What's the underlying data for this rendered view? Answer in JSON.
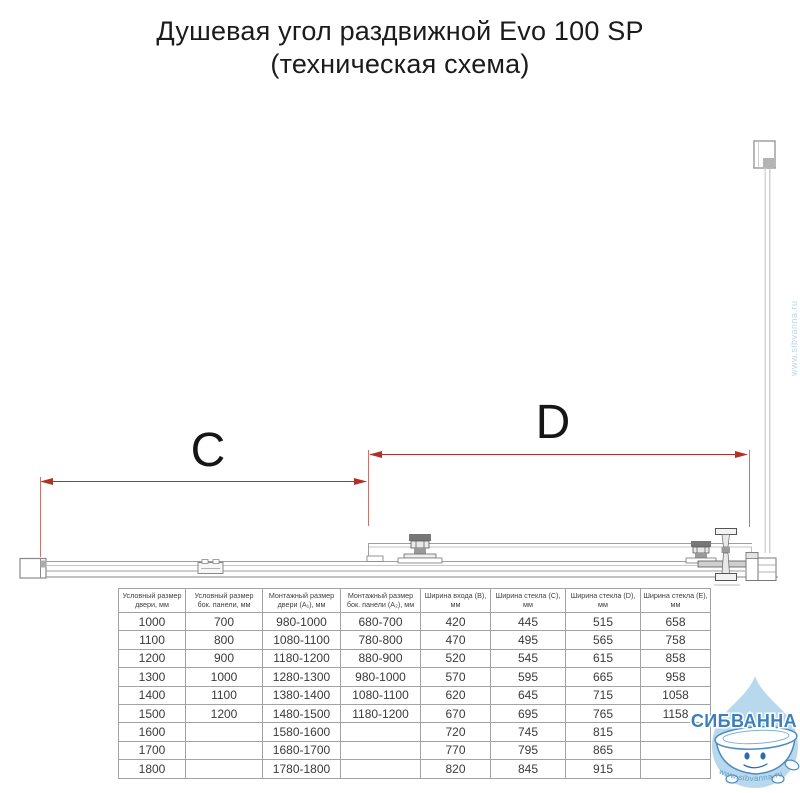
{
  "title": {
    "line1": "Душевая угол раздвижной Evo 100 SP",
    "line2": "(техническая схема)"
  },
  "diagram": {
    "dim_c_label": "C",
    "dim_d_label": "D",
    "dimension_color": "#b23127"
  },
  "table": {
    "headers": [
      "Условный размер двери, мм",
      "Условный размер бок. панели, мм",
      "Монтажный размер двери (A₁), мм",
      "Монтажный размер бок. панели (A₂), мм",
      "Ширина входа (B), мм",
      "Ширина стекла (C), мм",
      "Ширина стекла (D), мм",
      "Ширина стекла (E), мм"
    ],
    "rows": [
      [
        "1000",
        "700",
        "980-1000",
        "680-700",
        "420",
        "445",
        "515",
        "658"
      ],
      [
        "1100",
        "800",
        "1080-1100",
        "780-800",
        "470",
        "495",
        "565",
        "758"
      ],
      [
        "1200",
        "900",
        "1180-1200",
        "880-900",
        "520",
        "545",
        "615",
        "858"
      ],
      [
        "1300",
        "1000",
        "1280-1300",
        "980-1000",
        "570",
        "595",
        "665",
        "958"
      ],
      [
        "1400",
        "1100",
        "1380-1400",
        "1080-1100",
        "620",
        "645",
        "715",
        "1058"
      ],
      [
        "1500",
        "1200",
        "1480-1500",
        "1180-1200",
        "670",
        "695",
        "765",
        "1158"
      ],
      [
        "1600",
        "",
        "1580-1600",
        "",
        "720",
        "745",
        "815",
        ""
      ],
      [
        "1700",
        "",
        "1680-1700",
        "",
        "770",
        "795",
        "865",
        ""
      ],
      [
        "1800",
        "",
        "1780-1800",
        "",
        "820",
        "845",
        "915",
        ""
      ]
    ]
  },
  "watermark": {
    "brand": "СИБВАННА",
    "url": "www.sibvanna.ru",
    "drop_color": "#b8d9ed",
    "text_color": "#3c80ba"
  }
}
